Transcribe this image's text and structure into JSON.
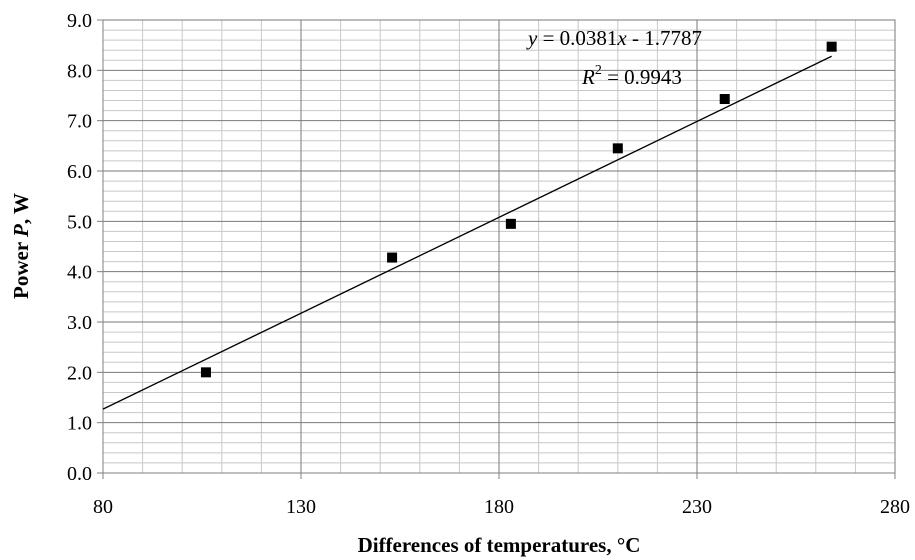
{
  "chart_data": {
    "type": "scatter",
    "title": "",
    "xlabel": "Differences of temperatures, °C",
    "ylabel_prefix": "Power ",
    "ylabel_var": "P",
    "ylabel_suffix": ", W",
    "xlim": [
      80,
      280
    ],
    "ylim": [
      0,
      9
    ],
    "xticks": [
      80,
      130,
      180,
      230,
      280
    ],
    "yticks": [
      "0.0",
      "1.0",
      "2.0",
      "3.0",
      "4.0",
      "5.0",
      "6.0",
      "7.0",
      "8.0",
      "9.0"
    ],
    "grid": true,
    "series": [
      {
        "x": [
          106,
          153,
          183,
          210,
          237,
          264
        ],
        "y": [
          2.0,
          4.28,
          4.95,
          6.45,
          7.43,
          8.47
        ],
        "marker": "square",
        "color": "#000000"
      }
    ],
    "trendline": {
      "type": "linear",
      "slope": 0.0381,
      "intercept": -1.7787,
      "x_range": [
        80,
        264
      ],
      "color": "#000000"
    },
    "annotations": {
      "equation": {
        "y_var": "y",
        "mid": " = 0.0381",
        "x_var": "x",
        "tail": " - 1.7787"
      },
      "r_squared": {
        "var": "R",
        "exp": "2",
        "value": " = 0.9943"
      }
    }
  }
}
